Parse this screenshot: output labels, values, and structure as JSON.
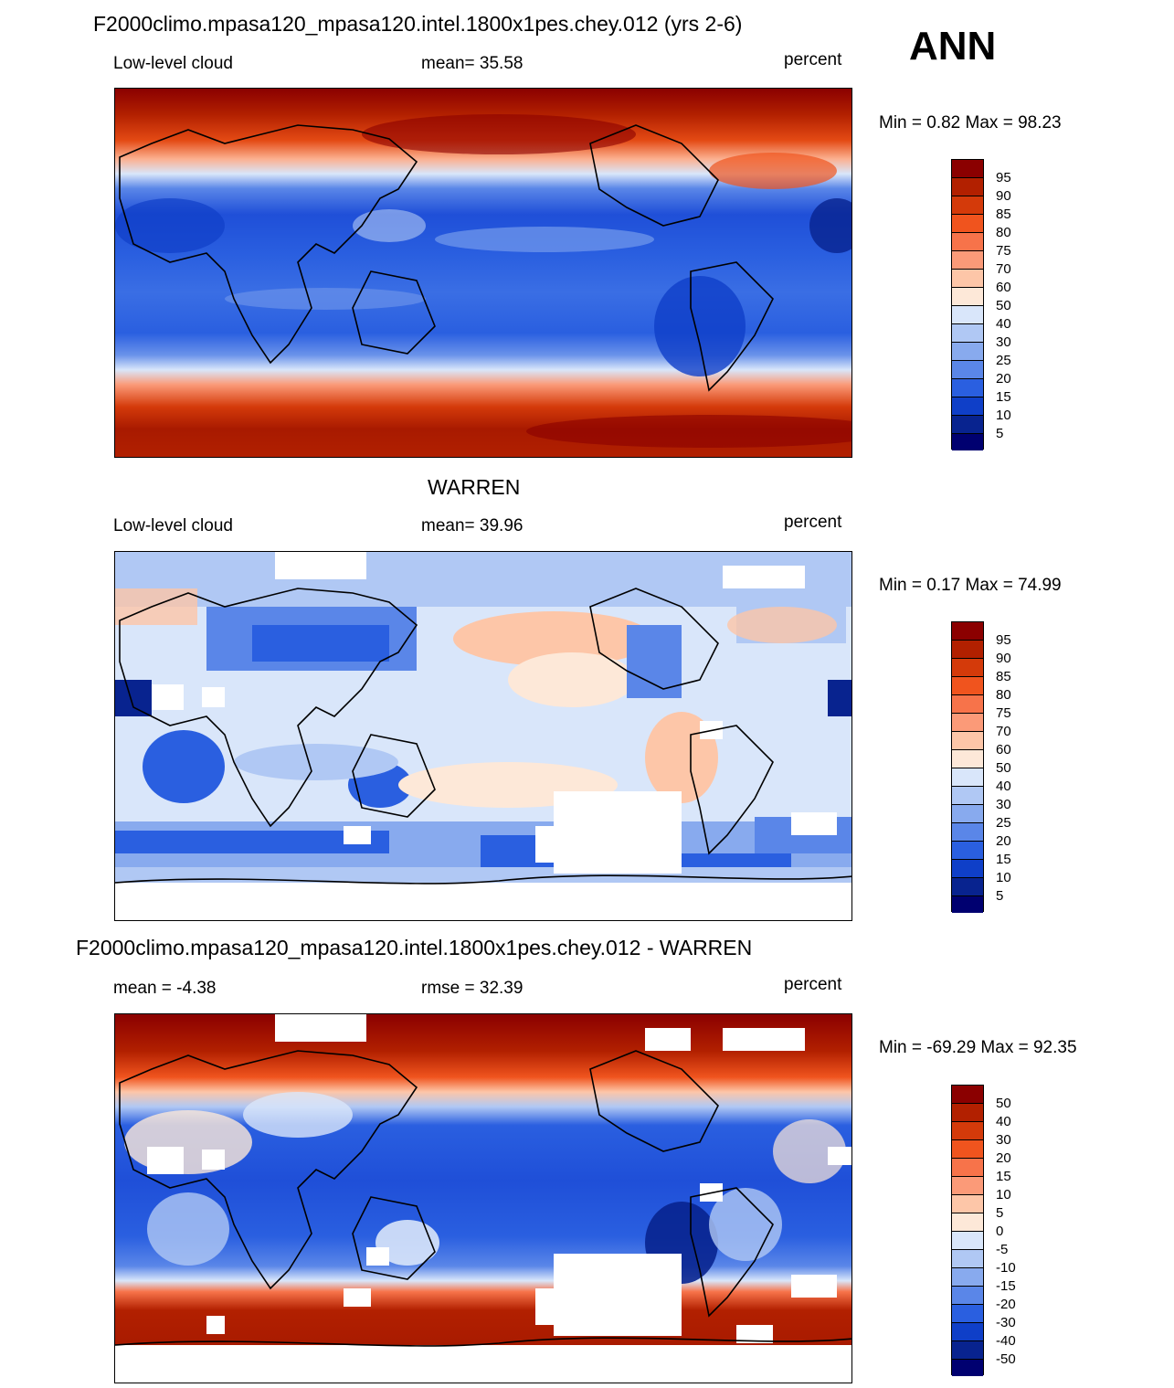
{
  "season": "ANN",
  "panels": [
    {
      "title": "F2000climo.mpasa120_mpasa120.intel.1800x1pes.chey.012 (yrs 2-6)",
      "left_label": "Low-level cloud",
      "center_label": "mean=  35.58",
      "units": "percent",
      "minmax": "Min =   0.82 Max =  98.23",
      "colorbar_labels": [
        "95",
        "90",
        "85",
        "80",
        "75",
        "70",
        "60",
        "50",
        "40",
        "30",
        "25",
        "20",
        "15",
        "10",
        "5"
      ]
    },
    {
      "title": "WARREN",
      "left_label": "Low-level cloud",
      "center_label": "mean=  39.96",
      "units": "percent",
      "minmax": "Min =   0.17 Max =  74.99",
      "colorbar_labels": [
        "95",
        "90",
        "85",
        "80",
        "75",
        "70",
        "60",
        "50",
        "40",
        "30",
        "25",
        "20",
        "15",
        "10",
        "5"
      ]
    },
    {
      "title": "F2000climo.mpasa120_mpasa120.intel.1800x1pes.chey.012 - WARREN",
      "left_label": "mean =  -4.38",
      "center_label": "rmse =  32.39",
      "units": "percent",
      "minmax": "Min = -69.29 Max =  92.35",
      "colorbar_labels": [
        "50",
        "40",
        "30",
        "20",
        "15",
        "10",
        "5",
        "0",
        "-5",
        "-10",
        "-15",
        "-20",
        "-30",
        "-40",
        "-50"
      ]
    }
  ],
  "colors": {
    "scale": [
      "#8b0000",
      "#b22000",
      "#d43a0a",
      "#f0541e",
      "#f7734a",
      "#fb9a78",
      "#fdc6a8",
      "#fde8d8",
      "#d9e6fa",
      "#b0c8f4",
      "#88aaee",
      "#5a86e8",
      "#2a5fe0",
      "#0f3fc8",
      "#08238f",
      "#000070"
    ]
  }
}
